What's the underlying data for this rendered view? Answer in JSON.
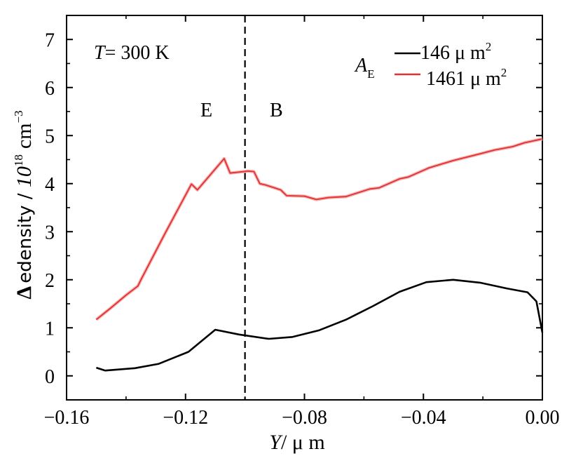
{
  "chart_data": {
    "type": "line",
    "title": "",
    "xlabel": {
      "italic": "Y",
      "rest": "/ μ m"
    },
    "ylabel": {
      "symbol": "Δ",
      "text": "edensity / ",
      "power_base": "10",
      "power_exp": "18",
      "unit": "cm",
      "unit_exp": "−3"
    },
    "xlim": [
      -0.16,
      0.0
    ],
    "ylim": [
      -0.5,
      7.5
    ],
    "x_ticks": [
      -0.16,
      -0.12,
      -0.08,
      -0.04,
      0.0
    ],
    "x_tick_labels": [
      "−0.16",
      "−0.12",
      "−0.08",
      "−0.04",
      "0.00"
    ],
    "y_ticks": [
      0,
      1,
      2,
      3,
      4,
      5,
      6,
      7
    ],
    "y_tick_labels": [
      "0",
      "1",
      "2",
      "3",
      "4",
      "5",
      "6",
      "7"
    ],
    "grid": false,
    "legend_position": "top-right",
    "legend_title": {
      "symbol": "A",
      "subscript": "E"
    },
    "annotations": {
      "temperature": {
        "italic": "T",
        "text": "= 300 K"
      },
      "region_left": "E",
      "region_right": "B",
      "divider_x": -0.1
    },
    "series": [
      {
        "name": "146 μ m",
        "name_exp": "2",
        "color": "#000000",
        "x": [
          -0.15,
          -0.147,
          -0.137,
          -0.129,
          -0.119,
          -0.11,
          -0.102,
          -0.092,
          -0.084,
          -0.075,
          -0.066,
          -0.057,
          -0.048,
          -0.039,
          -0.03,
          -0.021,
          -0.012,
          -0.005,
          -0.002,
          0.0
        ],
        "y": [
          0.17,
          0.11,
          0.16,
          0.25,
          0.5,
          0.96,
          0.86,
          0.77,
          0.81,
          0.95,
          1.17,
          1.45,
          1.75,
          1.95,
          2.0,
          1.94,
          1.82,
          1.74,
          1.55,
          0.9
        ]
      },
      {
        "name": "1461 μ m",
        "name_exp": "2",
        "color": "#e03232",
        "x": [
          -0.15,
          -0.145,
          -0.14,
          -0.136,
          -0.135,
          -0.127,
          -0.118,
          -0.116,
          -0.107,
          -0.105,
          -0.099,
          -0.097,
          -0.095,
          -0.093,
          -0.09,
          -0.088,
          -0.086,
          -0.08,
          -0.076,
          -0.072,
          -0.066,
          -0.058,
          -0.055,
          -0.048,
          -0.045,
          -0.038,
          -0.03,
          -0.021,
          -0.016,
          -0.01,
          -0.006,
          0.0
        ],
        "y": [
          1.17,
          1.42,
          1.68,
          1.87,
          2.0,
          2.95,
          3.99,
          3.87,
          4.52,
          4.22,
          4.26,
          4.25,
          4.0,
          3.97,
          3.91,
          3.87,
          3.75,
          3.74,
          3.67,
          3.71,
          3.73,
          3.89,
          3.91,
          4.1,
          4.14,
          4.33,
          4.48,
          4.62,
          4.7,
          4.77,
          4.85,
          4.93
        ]
      }
    ]
  }
}
